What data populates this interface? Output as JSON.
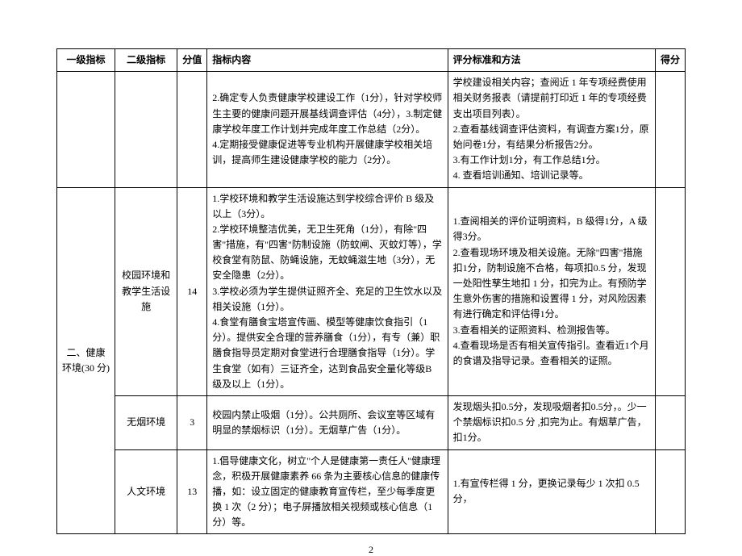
{
  "header": {
    "level1": "一级指标",
    "level2": "二级指标",
    "scoreValue": "分值",
    "content": "指标内容",
    "evaluation": "评分标准和方法",
    "result": "得分"
  },
  "rows": [
    {
      "level1": "",
      "level2": "",
      "score": "",
      "content": "2.确定专人负责健康学校建设工作（1分），针对学校师生主要的健康问题开展基线调查评估（4分），3.制定健康学校年度工作计划并完成年度工作总结（2分）。\n4.定期接受健康促进等专业机构开展健康学校相关培训，提高师生建设健康学校的能力（2分）。",
      "evaluation": "学校建设相关内容；查阅近 1 年专项经费使用相关财务报表（请提前打印近 1 年的专项经费支出项目列表）。\n2.查看基线调查评估资料，有调查方案1分，原始问卷1分，有结果分析报告2分。\n3.有工作计划1分，有工作总结1分。\n4. 查看培训通知、培训记录等。",
      "result": ""
    },
    {
      "level1": "二、健康环境(30 分)",
      "level2": "校园环境和教学生活设施",
      "score": "14",
      "content": "1.学校环境和教学生活设施达到学校综合评价 B 级及以上（3分）。\n2.学校环境整洁优美，无卫生死角（1分），有除\"四害\"措施，有\"四害\"防制设施（防蚊闸、灭蚊灯等），学校食堂有防鼠、防蝇设施，无蚊蝇滋生地（3分），无安全隐患（2分）。\n3.学校必须为学生提供证照齐全、充足的卫生饮水以及相关设施（1分）。\n4.食堂有膳食宝塔宣传画、模型等健康饮食指引（1分）。提供安全合理的营养膳食（1分），有专（兼）职膳食指导员定期对食堂进行合理膳食指导（1分）。学生食堂（如有）三证齐全，达到食品安全量化等级B 级及以上（1分）。",
      "evaluation": "1.查阅相关的评价证明资料，B 级得1分，A 级得3分。\n2.查看现场环境及相关设施。无除\"四害\"措施扣1分，防制设施不合格，每项扣0.5 分，发现一处阳性孳生地扣 1 分，扣完为止。有预防学生意外伤害的措施和设置得 1 分，对风险因素有进行确定和评估得1分。\n3.查看相关的证照资料、检测报告等。\n4.查看现场是否有相关宣传指引。查看近1个月\n的食谱及指导记录。查看相关的证照。",
      "result": "",
      "level1_rowspan": 3
    },
    {
      "level2": "无烟环境",
      "score": "3",
      "content": "校园内禁止吸烟（1分）。公共厕所、会议室等区域有明显的禁烟标识（1分）。无烟草广告（1分）。",
      "evaluation": "发现烟头扣0.5分，发现吸烟者扣0.5分，。少一个禁烟标识扣0.5 分 ,扣完为止。有烟草广告，扣1分。",
      "result": ""
    },
    {
      "level2": "人文环境",
      "score": "13",
      "content": "1.倡导健康文化，树立\"个人是健康第一责任人\"健康理念，积极开展健康素养 66 条为主要核心信息的健康传播，如：设立固定的健康教育宣传栏，至少每季度更换 1 次（2 分）；电子屏播放相关视频或核心信息（1分）等。",
      "evaluation": "1.有宣传栏得 1 分，更换记录每少 1 次扣 0.5 分，",
      "result": ""
    }
  ],
  "pageNumber": "2",
  "style": {
    "text_color": "#000000",
    "border_color": "#000000",
    "bg_color": "#ffffff",
    "font_size": 12,
    "line_height": 1.6
  }
}
